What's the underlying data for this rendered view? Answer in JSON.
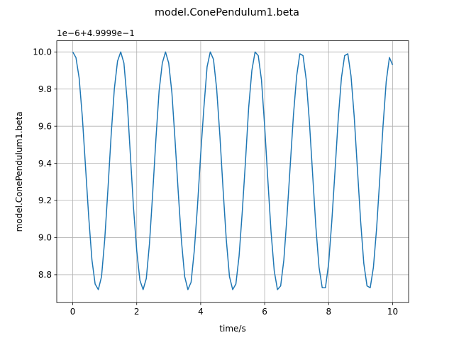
{
  "chart_data": {
    "type": "line",
    "title": "model.ConePendulum1.beta",
    "xlabel": "time/s",
    "ylabel": "model.ConePendulum1.beta",
    "offset_label": "1e−6+4.9999e−1",
    "xlim": [
      -0.5,
      10.5
    ],
    "ylim": [
      8.65,
      10.06
    ],
    "xticks": [
      0,
      2,
      4,
      6,
      8,
      10
    ],
    "xtick_labels": [
      "0",
      "2",
      "4",
      "6",
      "8",
      "10"
    ],
    "yticks": [
      8.8,
      9.0,
      9.2,
      9.4,
      9.6,
      9.8,
      10.0
    ],
    "ytick_labels": [
      "8.8",
      "9.0",
      "9.2",
      "9.4",
      "9.6",
      "9.8",
      "10.0"
    ],
    "grid": true,
    "series": [
      {
        "color": "#1f77b4",
        "x": [
          0,
          0.1,
          0.2,
          0.3,
          0.4,
          0.5,
          0.6,
          0.7,
          0.8,
          0.9,
          1.0,
          1.1,
          1.2,
          1.3,
          1.4,
          1.5,
          1.6,
          1.7,
          1.8,
          1.9,
          2.0,
          2.1,
          2.2,
          2.3,
          2.4,
          2.5,
          2.6,
          2.7,
          2.8,
          2.9,
          3.0,
          3.1,
          3.2,
          3.3,
          3.4,
          3.5,
          3.6,
          3.7,
          3.8,
          3.9,
          4.0,
          4.1,
          4.2,
          4.3,
          4.4,
          4.5,
          4.6,
          4.7,
          4.8,
          4.9,
          5.0,
          5.1,
          5.2,
          5.3,
          5.4,
          5.5,
          5.6,
          5.7,
          5.8,
          5.9,
          6.0,
          6.1,
          6.2,
          6.3,
          6.4,
          6.5,
          6.6,
          6.7,
          6.8,
          6.9,
          7.0,
          7.1,
          7.2,
          7.3,
          7.4,
          7.5,
          7.6,
          7.7,
          7.8,
          7.9,
          8.0,
          8.1,
          8.2,
          8.3,
          8.4,
          8.5,
          8.6,
          8.7,
          8.8,
          8.9,
          9.0,
          9.1,
          9.2,
          9.3,
          9.4,
          9.5,
          9.6,
          9.7,
          9.8,
          9.9,
          10.0
        ],
        "y": [
          10.0,
          9.97,
          9.86,
          9.65,
          9.38,
          9.11,
          8.88,
          8.75,
          8.72,
          8.79,
          8.99,
          9.26,
          9.55,
          9.8,
          9.95,
          10.0,
          9.94,
          9.74,
          9.45,
          9.16,
          8.93,
          8.77,
          8.72,
          8.78,
          8.97,
          9.24,
          9.53,
          9.79,
          9.94,
          10.0,
          9.94,
          9.78,
          9.52,
          9.24,
          8.98,
          8.79,
          8.72,
          8.76,
          8.93,
          9.17,
          9.45,
          9.7,
          9.92,
          10.0,
          9.96,
          9.8,
          9.55,
          9.26,
          8.99,
          8.79,
          8.72,
          8.75,
          8.9,
          9.14,
          9.41,
          9.7,
          9.9,
          10.0,
          9.98,
          9.85,
          9.6,
          9.31,
          9.03,
          8.82,
          8.72,
          8.74,
          8.88,
          9.12,
          9.39,
          9.66,
          9.87,
          9.99,
          9.98,
          9.85,
          9.62,
          9.34,
          9.06,
          8.84,
          8.73,
          8.73,
          8.86,
          9.09,
          9.36,
          9.64,
          9.86,
          9.98,
          9.99,
          9.87,
          9.65,
          9.37,
          9.09,
          8.86,
          8.74,
          8.73,
          8.84,
          9.05,
          9.32,
          9.6,
          9.84,
          9.97,
          9.93
        ]
      }
    ]
  }
}
